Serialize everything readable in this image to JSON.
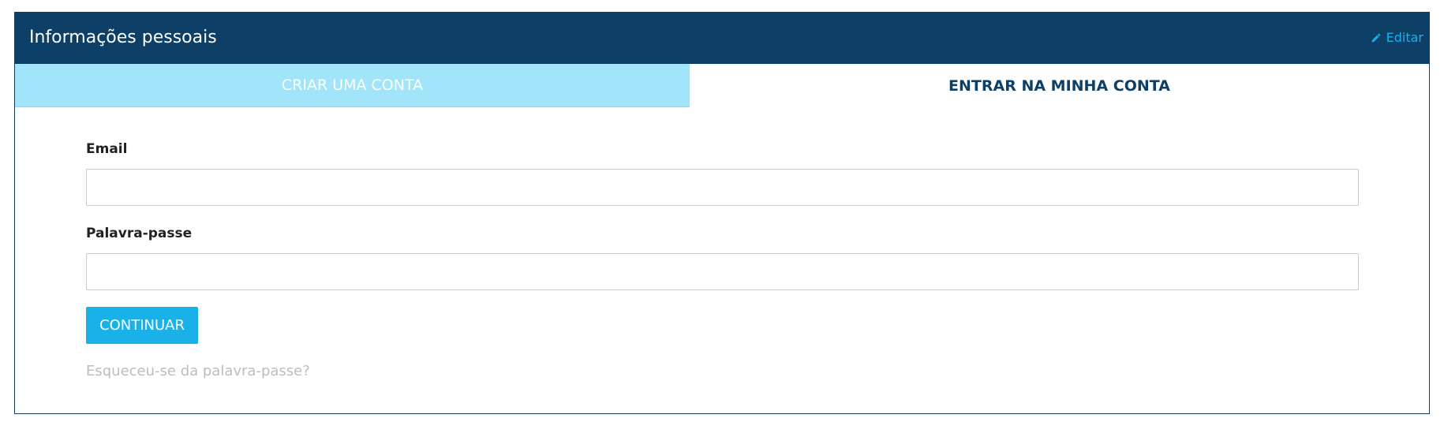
{
  "header": {
    "title": "Informações pessoais",
    "edit": "Editar"
  },
  "tabs": [
    "CRIAR UMA CONTA",
    "ENTRAR NA MINHA CONTA"
  ],
  "form": {
    "email_label": "Email",
    "password_label": "Palavra-passe",
    "button": "CONTINUAR",
    "forgot_link": "Esqueceu-se da palavra-passe?"
  }
}
